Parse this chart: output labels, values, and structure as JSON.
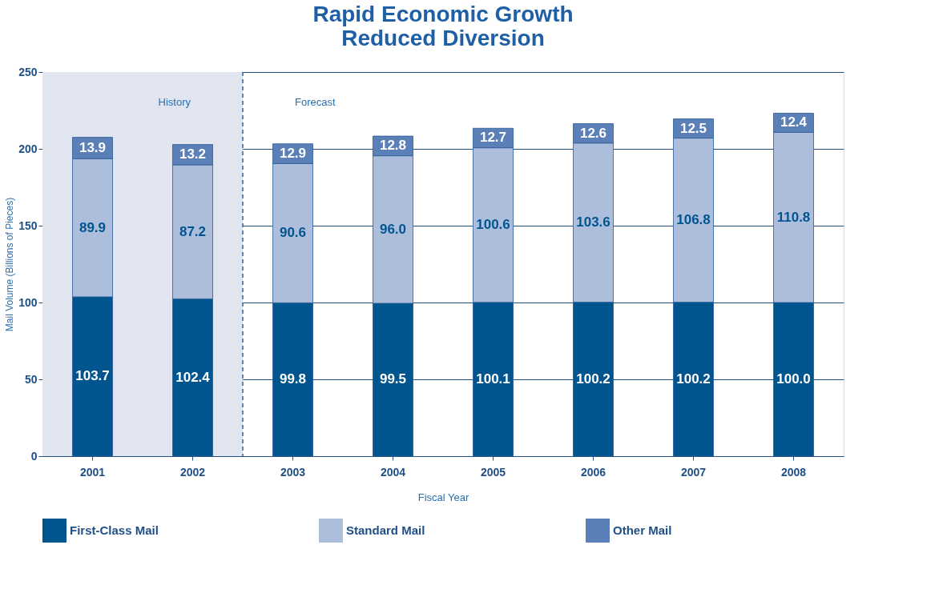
{
  "chart_data": {
    "type": "bar",
    "stacked": true,
    "title": [
      "Rapid Economic Growth",
      "Reduced Diversion"
    ],
    "xlabel": "Fiscal Year",
    "ylabel": "Mail Volume (Billions of Pieces)",
    "categories": [
      "2001",
      "2002",
      "2003",
      "2004",
      "2005",
      "2006",
      "2007",
      "2008"
    ],
    "series": [
      {
        "name": "First-Class Mail",
        "color": "#00558f",
        "values": [
          103.7,
          102.4,
          99.8,
          99.5,
          100.1,
          100.2,
          100.2,
          100.0
        ],
        "value_labels": [
          "103.7",
          "102.4",
          "99.8",
          "99.5",
          "100.1",
          "100.2",
          "100.2",
          "100.0"
        ]
      },
      {
        "name": "Standard Mail",
        "color": "#adbedc",
        "values": [
          89.9,
          87.2,
          90.6,
          96.0,
          100.6,
          103.6,
          106.8,
          110.8
        ],
        "value_labels": [
          "89.9",
          "87.2",
          "90.6",
          "96.0",
          "100.6",
          "103.6",
          "106.8",
          "110.8"
        ]
      },
      {
        "name": "Other Mail",
        "color": "#5b7fb7",
        "values": [
          13.9,
          13.2,
          12.9,
          12.8,
          12.7,
          12.6,
          12.5,
          12.4
        ],
        "value_labels": [
          "13.9",
          "13.2",
          "12.9",
          "12.8",
          "12.7",
          "12.6",
          "12.5",
          "12.4"
        ]
      }
    ],
    "ylim": [
      0,
      250
    ],
    "yticks": [
      0,
      50,
      100,
      150,
      200,
      250
    ],
    "grid": "y",
    "legend": "bottom",
    "bands": [
      {
        "axis": "x",
        "from": "2001",
        "to": "2002",
        "color": "#e1e5f0"
      }
    ],
    "ref_lines": [
      {
        "axis": "x",
        "value": "2003",
        "line_style": "dashed",
        "color": "#3a5f8f"
      }
    ],
    "annotations": [
      "History",
      "Forecast"
    ]
  }
}
